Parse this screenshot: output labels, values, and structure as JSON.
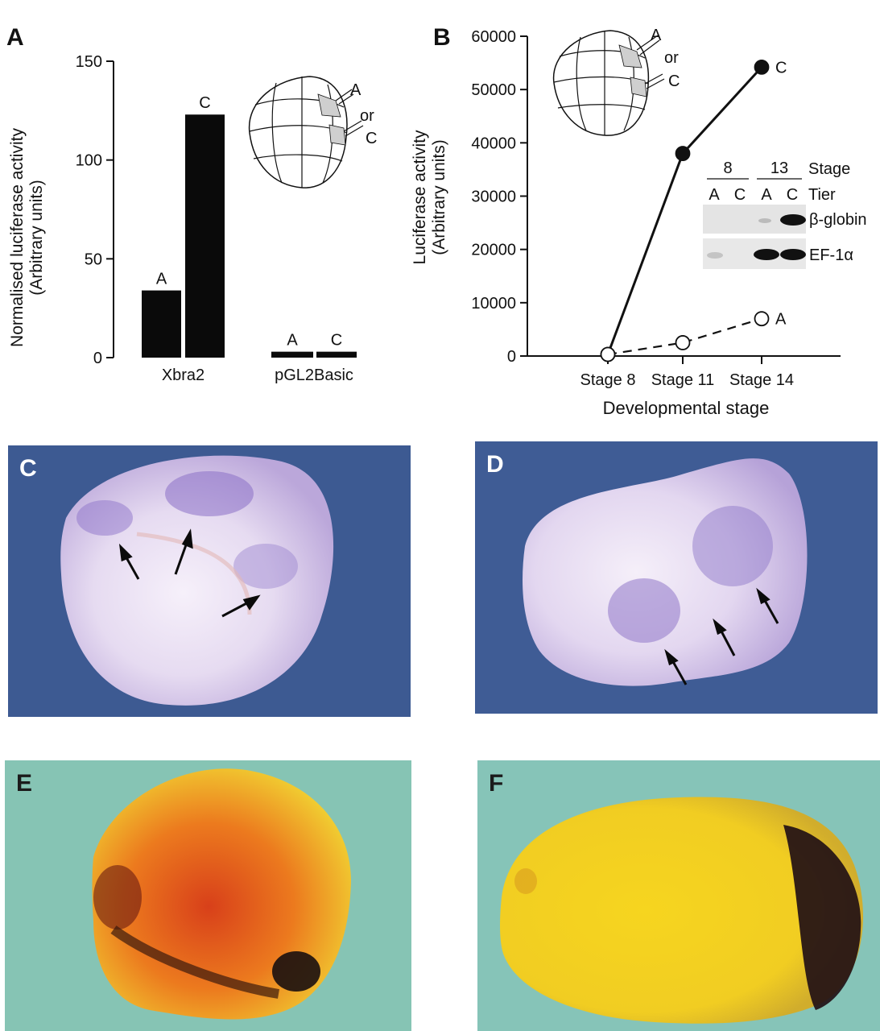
{
  "panels": {
    "a": {
      "letter": "A",
      "ylabel_line1": "Normalised luciferase activity",
      "ylabel_line2": "(Arbitrary units)",
      "inset_labels": {
        "a": "A",
        "or": "or",
        "c": "C"
      }
    },
    "b": {
      "letter": "B",
      "ylabel_line1": "Luciferase activity",
      "ylabel_line2": "(Arbitrary units)",
      "xlabel": "Developmental stage",
      "inset_labels": {
        "a": "A",
        "or": "or",
        "c": "C"
      },
      "blot": {
        "stage_label": "Stage",
        "tier_label": "Tier",
        "stages": [
          "8",
          "13"
        ],
        "tiers": [
          "A",
          "C",
          "A",
          "C"
        ],
        "rows": [
          "β-globin",
          "EF-1α"
        ]
      }
    },
    "c": {
      "letter": "C"
    },
    "d": {
      "letter": "D"
    },
    "e": {
      "letter": "E"
    },
    "f": {
      "letter": "F"
    }
  },
  "chart_data": [
    {
      "type": "bar",
      "panel": "A",
      "title": "",
      "ylabel": "Normalised luciferase activity (Arbitrary units)",
      "xlabel": "",
      "ylim": [
        0,
        150
      ],
      "yticks": [
        0,
        50,
        100,
        150
      ],
      "groups": [
        {
          "name": "Xbra2",
          "bars": [
            {
              "label": "A",
              "value": 34
            },
            {
              "label": "C",
              "value": 123
            }
          ]
        },
        {
          "name": "pGL2Basic",
          "bars": [
            {
              "label": "A",
              "value": 3
            },
            {
              "label": "C",
              "value": 3
            }
          ]
        }
      ]
    },
    {
      "type": "line",
      "panel": "B",
      "title": "",
      "ylabel": "Luciferase activity (Arbitrary units)",
      "xlabel": "Developmental stage",
      "x": [
        "Stage 8",
        "Stage 11",
        "Stage 14"
      ],
      "ylim": [
        0,
        60000
      ],
      "yticks": [
        0,
        10000,
        20000,
        30000,
        40000,
        50000,
        60000
      ],
      "series": [
        {
          "name": "C",
          "values": [
            300,
            38000,
            54200
          ],
          "style": "solid",
          "marker": "filled"
        },
        {
          "name": "A",
          "values": [
            300,
            2500,
            7000
          ],
          "style": "dashed",
          "marker": "open"
        }
      ]
    }
  ],
  "colors": {
    "bar": "#0a0a0a",
    "photo_blue_bg": "#3e5c94",
    "embryo_purple": "#d9cbe8",
    "photo_green_bg": "#86c3b4",
    "embryo_yellow": "#f2d221",
    "stain_dark": "#241018"
  }
}
